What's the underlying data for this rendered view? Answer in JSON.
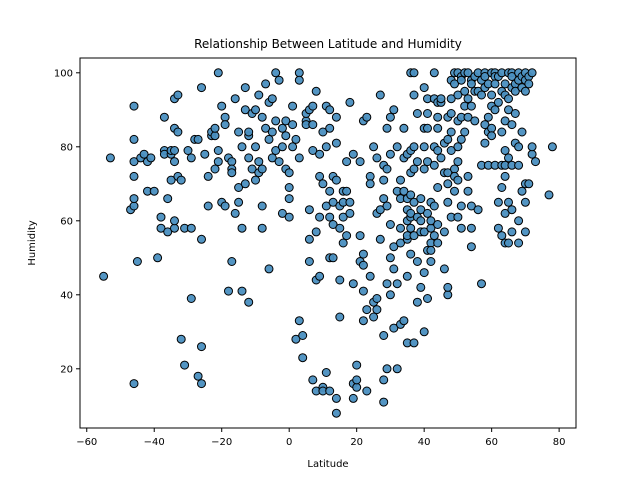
{
  "chart_data": {
    "type": "scatter",
    "title": "Relationship Between Latitude and Humidity",
    "xlabel": "Latitude",
    "ylabel": "Humidity",
    "xlim": [
      -62,
      85
    ],
    "ylim": [
      4,
      104
    ],
    "xticks": [
      -60,
      -40,
      -20,
      0,
      20,
      40,
      60,
      80
    ],
    "yticks": [
      20,
      40,
      60,
      80,
      100
    ],
    "grid": false,
    "legend": "none",
    "marker_color": "#4a8fc0",
    "marker_edge": "#000000",
    "points": [
      [
        -55,
        45
      ],
      [
        -53,
        77
      ],
      [
        -47,
        63
      ],
      [
        -46,
        64
      ],
      [
        -46,
        66
      ],
      [
        -46,
        72
      ],
      [
        -46,
        76
      ],
      [
        -46,
        82
      ],
      [
        -46,
        91
      ],
      [
        -46,
        16
      ],
      [
        -45,
        49
      ],
      [
        -44,
        77
      ],
      [
        -43,
        78
      ],
      [
        -42,
        76
      ],
      [
        -42,
        68
      ],
      [
        -41,
        77
      ],
      [
        -40,
        68
      ],
      [
        -39,
        50
      ],
      [
        -38,
        58
      ],
      [
        -38,
        61
      ],
      [
        -37,
        79
      ],
      [
        -37,
        78
      ],
      [
        -37,
        88
      ],
      [
        -36,
        66
      ],
      [
        -36,
        57
      ],
      [
        -35,
        78
      ],
      [
        -35,
        79
      ],
      [
        -35,
        71
      ],
      [
        -34,
        58
      ],
      [
        -34,
        60
      ],
      [
        -34,
        93
      ],
      [
        -34,
        76
      ],
      [
        -34,
        79
      ],
      [
        -34,
        85
      ],
      [
        -33,
        94
      ],
      [
        -33,
        72
      ],
      [
        -33,
        84
      ],
      [
        -32,
        28
      ],
      [
        -32,
        71
      ],
      [
        -31,
        21
      ],
      [
        -31,
        58
      ],
      [
        -30,
        79
      ],
      [
        -29,
        39
      ],
      [
        -29,
        58
      ],
      [
        -29,
        77
      ],
      [
        -28,
        82
      ],
      [
        -27,
        82
      ],
      [
        -27,
        18
      ],
      [
        -26,
        55
      ],
      [
        -26,
        26
      ],
      [
        -26,
        16
      ],
      [
        -26,
        96
      ],
      [
        -25,
        78
      ],
      [
        -24,
        72
      ],
      [
        -24,
        64
      ],
      [
        -23,
        83
      ],
      [
        -23,
        84
      ],
      [
        -22,
        83
      ],
      [
        -22,
        85
      ],
      [
        -22,
        74
      ],
      [
        -21,
        79
      ],
      [
        -21,
        76
      ],
      [
        -21,
        100
      ],
      [
        -20,
        91
      ],
      [
        -20,
        65
      ],
      [
        -19,
        88
      ],
      [
        -19,
        64
      ],
      [
        -19,
        86
      ],
      [
        -18,
        41
      ],
      [
        -18,
        77
      ],
      [
        -17,
        49
      ],
      [
        -17,
        76
      ],
      [
        -17,
        74
      ],
      [
        -17,
        73
      ],
      [
        -16,
        62
      ],
      [
        -16,
        93
      ],
      [
        -15,
        69
      ],
      [
        -15,
        84
      ],
      [
        -15,
        65
      ],
      [
        -14,
        58
      ],
      [
        -14,
        41
      ],
      [
        -14,
        80
      ],
      [
        -13,
        90
      ],
      [
        -13,
        70
      ],
      [
        -13,
        96
      ],
      [
        -12,
        83
      ],
      [
        -12,
        84
      ],
      [
        -12,
        77
      ],
      [
        -12,
        38
      ],
      [
        -11,
        74
      ],
      [
        -11,
        89
      ],
      [
        -10,
        90
      ],
      [
        -10,
        80
      ],
      [
        -10,
        71
      ],
      [
        -9,
        73
      ],
      [
        -9,
        76
      ],
      [
        -9,
        94
      ],
      [
        -8,
        58
      ],
      [
        -8,
        64
      ],
      [
        -8,
        74
      ],
      [
        -8,
        88
      ],
      [
        -7,
        85
      ],
      [
        -7,
        97
      ],
      [
        -6,
        47
      ],
      [
        -6,
        82
      ],
      [
        -6,
        92
      ],
      [
        -5,
        93
      ],
      [
        -5,
        84
      ],
      [
        -5,
        77
      ],
      [
        -4,
        79
      ],
      [
        -4,
        100
      ],
      [
        -4,
        87
      ],
      [
        -3,
        76
      ],
      [
        -3,
        98
      ],
      [
        -2,
        80
      ],
      [
        -2,
        62
      ],
      [
        -2,
        85
      ],
      [
        -1,
        83
      ],
      [
        -1,
        74
      ],
      [
        -1,
        87
      ],
      [
        0,
        66
      ],
      [
        0,
        69
      ],
      [
        0,
        73
      ],
      [
        0,
        61
      ],
      [
        1,
        86
      ],
      [
        1,
        91
      ],
      [
        1,
        80
      ],
      [
        2,
        82
      ],
      [
        2,
        28
      ],
      [
        3,
        77
      ],
      [
        3,
        100
      ],
      [
        3,
        98
      ],
      [
        3,
        33
      ],
      [
        4,
        29
      ],
      [
        4,
        23
      ],
      [
        5,
        87
      ],
      [
        5,
        89
      ],
      [
        5,
        86
      ],
      [
        6,
        90
      ],
      [
        6,
        63
      ],
      [
        6,
        55
      ],
      [
        6,
        49
      ],
      [
        7,
        91
      ],
      [
        7,
        79
      ],
      [
        7,
        86
      ],
      [
        7,
        17
      ],
      [
        8,
        95
      ],
      [
        8,
        57
      ],
      [
        8,
        44
      ],
      [
        8,
        14
      ],
      [
        9,
        72
      ],
      [
        9,
        61
      ],
      [
        9,
        45
      ],
      [
        9,
        78
      ],
      [
        10,
        70
      ],
      [
        10,
        84
      ],
      [
        10,
        15
      ],
      [
        10,
        14
      ],
      [
        11,
        91
      ],
      [
        11,
        80
      ],
      [
        11,
        64
      ],
      [
        11,
        19
      ],
      [
        12,
        85
      ],
      [
        12,
        90
      ],
      [
        12,
        68
      ],
      [
        12,
        61
      ],
      [
        12,
        50
      ],
      [
        12,
        14
      ],
      [
        13,
        72
      ],
      [
        13,
        65
      ],
      [
        13,
        59
      ],
      [
        13,
        50
      ],
      [
        14,
        71
      ],
      [
        14,
        81
      ],
      [
        14,
        88
      ],
      [
        14,
        12
      ],
      [
        14,
        8
      ],
      [
        15,
        64
      ],
      [
        15,
        58
      ],
      [
        15,
        44
      ],
      [
        15,
        34
      ],
      [
        16,
        68
      ],
      [
        16,
        61
      ],
      [
        16,
        54
      ],
      [
        16,
        65
      ],
      [
        17,
        68
      ],
      [
        17,
        56
      ],
      [
        17,
        76
      ],
      [
        18,
        92
      ],
      [
        18,
        65
      ],
      [
        18,
        62
      ],
      [
        19,
        12
      ],
      [
        19,
        16
      ],
      [
        19,
        78
      ],
      [
        19,
        43
      ],
      [
        20,
        21
      ],
      [
        20,
        15
      ],
      [
        20,
        17
      ],
      [
        21,
        49
      ],
      [
        21,
        56
      ],
      [
        21,
        76
      ],
      [
        22,
        48
      ],
      [
        22,
        51
      ],
      [
        22,
        41
      ],
      [
        22,
        33
      ],
      [
        22,
        87
      ],
      [
        23,
        88
      ],
      [
        23,
        14
      ],
      [
        23,
        36
      ],
      [
        24,
        72
      ],
      [
        24,
        45
      ],
      [
        24,
        70
      ],
      [
        25,
        80
      ],
      [
        25,
        38
      ],
      [
        25,
        34
      ],
      [
        26,
        62
      ],
      [
        26,
        36
      ],
      [
        26,
        39
      ],
      [
        26,
        77
      ],
      [
        27,
        94
      ],
      [
        27,
        63
      ],
      [
        27,
        55
      ],
      [
        28,
        17
      ],
      [
        28,
        11
      ],
      [
        28,
        29
      ],
      [
        28,
        66
      ],
      [
        28,
        71
      ],
      [
        28,
        75
      ],
      [
        29,
        64
      ],
      [
        29,
        20
      ],
      [
        29,
        43
      ],
      [
        29,
        85
      ],
      [
        29,
        74
      ],
      [
        30,
        88
      ],
      [
        30,
        59
      ],
      [
        30,
        50
      ],
      [
        30,
        40
      ],
      [
        30,
        78
      ],
      [
        31,
        90
      ],
      [
        31,
        31
      ],
      [
        31,
        53
      ],
      [
        31,
        47
      ],
      [
        32,
        20
      ],
      [
        32,
        80
      ],
      [
        32,
        68
      ],
      [
        32,
        43
      ],
      [
        33,
        32
      ],
      [
        33,
        58
      ],
      [
        33,
        54
      ],
      [
        33,
        71
      ],
      [
        33,
        66
      ],
      [
        34,
        33
      ],
      [
        34,
        68
      ],
      [
        34,
        85
      ],
      [
        34,
        77
      ],
      [
        35,
        63
      ],
      [
        35,
        66
      ],
      [
        35,
        78
      ],
      [
        35,
        60
      ],
      [
        35,
        45
      ],
      [
        35,
        27
      ],
      [
        35,
        55
      ],
      [
        35,
        56
      ],
      [
        36,
        61
      ],
      [
        36,
        58
      ],
      [
        36,
        73
      ],
      [
        36,
        79
      ],
      [
        36,
        100
      ],
      [
        36,
        67
      ],
      [
        36,
        62
      ],
      [
        36,
        51
      ],
      [
        37,
        100
      ],
      [
        37,
        94
      ],
      [
        37,
        27
      ],
      [
        37,
        80
      ],
      [
        37,
        74
      ],
      [
        37,
        65
      ],
      [
        37,
        56
      ],
      [
        38,
        38
      ],
      [
        38,
        89
      ],
      [
        38,
        76
      ],
      [
        38,
        49
      ],
      [
        38,
        61
      ],
      [
        39,
        57
      ],
      [
        39,
        60
      ],
      [
        39,
        66
      ],
      [
        39,
        63
      ],
      [
        39,
        42
      ],
      [
        40,
        30
      ],
      [
        40,
        80
      ],
      [
        40,
        96
      ],
      [
        40,
        85
      ],
      [
        40,
        74
      ],
      [
        40,
        57
      ],
      [
        40,
        46
      ],
      [
        41,
        52
      ],
      [
        41,
        93
      ],
      [
        41,
        89
      ],
      [
        41,
        85
      ],
      [
        41,
        76
      ],
      [
        41,
        62
      ],
      [
        41,
        39
      ],
      [
        42,
        54
      ],
      [
        42,
        65
      ],
      [
        42,
        58
      ],
      [
        42,
        52
      ],
      [
        42,
        60
      ],
      [
        42,
        49
      ],
      [
        43,
        93
      ],
      [
        43,
        100
      ],
      [
        43,
        80
      ],
      [
        43,
        75
      ],
      [
        43,
        64
      ],
      [
        43,
        56
      ],
      [
        44,
        92
      ],
      [
        44,
        88
      ],
      [
        44,
        85
      ],
      [
        44,
        79
      ],
      [
        44,
        69
      ],
      [
        44,
        59
      ],
      [
        44,
        54
      ],
      [
        45,
        92
      ],
      [
        45,
        77
      ],
      [
        45,
        93
      ],
      [
        46,
        81
      ],
      [
        46,
        57
      ],
      [
        46,
        47
      ],
      [
        46,
        73
      ],
      [
        47,
        40
      ],
      [
        47,
        42
      ],
      [
        47,
        82
      ],
      [
        47,
        88
      ],
      [
        47,
        73
      ],
      [
        47,
        65
      ],
      [
        47,
        70
      ],
      [
        48,
        93
      ],
      [
        48,
        98
      ],
      [
        48,
        89
      ],
      [
        48,
        84
      ],
      [
        48,
        79
      ],
      [
        48,
        61
      ],
      [
        49,
        100
      ],
      [
        49,
        97
      ],
      [
        49,
        74
      ],
      [
        49,
        72
      ],
      [
        49,
        68
      ],
      [
        50,
        100
      ],
      [
        50,
        94
      ],
      [
        50,
        87
      ],
      [
        50,
        80
      ],
      [
        50,
        76
      ],
      [
        50,
        71
      ],
      [
        50,
        61
      ],
      [
        51,
        99
      ],
      [
        51,
        98
      ],
      [
        51,
        88
      ],
      [
        51,
        82
      ],
      [
        51,
        64
      ],
      [
        51,
        58
      ],
      [
        52,
        100
      ],
      [
        52,
        95
      ],
      [
        52,
        91
      ],
      [
        52,
        84
      ],
      [
        53,
        100
      ],
      [
        53,
        93
      ],
      [
        53,
        88
      ],
      [
        53,
        72
      ],
      [
        53,
        68
      ],
      [
        54,
        98
      ],
      [
        54,
        97
      ],
      [
        54,
        91
      ],
      [
        54,
        64
      ],
      [
        54,
        58
      ],
      [
        54,
        53
      ],
      [
        55,
        99
      ],
      [
        55,
        95
      ],
      [
        55,
        87
      ],
      [
        56,
        100
      ],
      [
        56,
        95
      ],
      [
        56,
        63
      ],
      [
        57,
        98
      ],
      [
        57,
        94
      ],
      [
        57,
        75
      ],
      [
        57,
        43
      ],
      [
        58,
        100
      ],
      [
        58,
        99
      ],
      [
        58,
        96
      ],
      [
        58,
        86
      ],
      [
        58,
        81
      ],
      [
        59,
        97
      ],
      [
        59,
        88
      ],
      [
        59,
        84
      ],
      [
        59,
        75
      ],
      [
        60,
        100
      ],
      [
        60,
        94
      ],
      [
        60,
        91
      ],
      [
        60,
        85
      ],
      [
        60,
        83
      ],
      [
        61,
        100
      ],
      [
        61,
        99
      ],
      [
        61,
        97
      ],
      [
        61,
        90
      ],
      [
        61,
        75
      ],
      [
        62,
        99
      ],
      [
        62,
        92
      ],
      [
        62,
        65
      ],
      [
        62,
        58
      ],
      [
        63,
        100
      ],
      [
        63,
        95
      ],
      [
        63,
        84
      ],
      [
        63,
        75
      ],
      [
        63,
        69
      ],
      [
        63,
        56
      ],
      [
        64,
        97
      ],
      [
        64,
        94
      ],
      [
        64,
        87
      ],
      [
        64,
        79
      ],
      [
        64,
        75
      ],
      [
        64,
        72
      ],
      [
        64,
        62
      ],
      [
        64,
        54
      ],
      [
        65,
        100
      ],
      [
        65,
        93
      ],
      [
        65,
        90
      ],
      [
        65,
        77
      ],
      [
        65,
        65
      ],
      [
        65,
        54
      ],
      [
        66,
        100
      ],
      [
        66,
        99
      ],
      [
        66,
        96
      ],
      [
        66,
        86
      ],
      [
        66,
        75
      ],
      [
        66,
        63
      ],
      [
        66,
        57
      ],
      [
        67,
        97
      ],
      [
        67,
        95
      ],
      [
        67,
        89
      ],
      [
        67,
        81
      ],
      [
        68,
        100
      ],
      [
        68,
        98
      ],
      [
        68,
        80
      ],
      [
        68,
        75
      ],
      [
        68,
        60
      ],
      [
        68,
        54
      ],
      [
        69,
        99
      ],
      [
        69,
        96
      ],
      [
        69,
        84
      ],
      [
        69,
        68
      ],
      [
        70,
        100
      ],
      [
        70,
        98
      ],
      [
        70,
        95
      ],
      [
        70,
        70
      ],
      [
        70,
        65
      ],
      [
        70,
        57
      ],
      [
        71,
        99
      ],
      [
        71,
        97
      ],
      [
        71,
        70
      ],
      [
        72,
        100
      ],
      [
        72,
        78
      ],
      [
        72,
        80
      ],
      [
        73,
        76
      ],
      [
        77,
        67
      ],
      [
        78,
        80
      ]
    ]
  }
}
